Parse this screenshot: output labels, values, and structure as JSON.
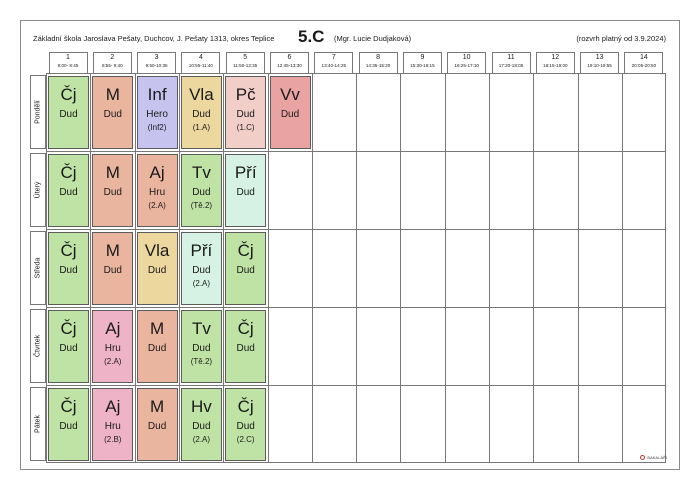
{
  "header": {
    "school": "Základní škola Jaroslava Pešaty, Duchcov, J. Pešaty 1313, okres Teplice",
    "class_name": "5.C",
    "teacher": "(Mgr. Lucie Dudjaková)",
    "valid_from": "(rozvrh platný od 3.9.2024)"
  },
  "periods": [
    {
      "num": "1",
      "time": "8:00- 8:45"
    },
    {
      "num": "2",
      "time": "8:55- 9:40"
    },
    {
      "num": "3",
      "time": "9:50-10:35"
    },
    {
      "num": "4",
      "time": "10:55-11:40"
    },
    {
      "num": "5",
      "time": "11:50-12:35"
    },
    {
      "num": "6",
      "time": "12:45-13:30"
    },
    {
      "num": "7",
      "time": "13:40-14:25"
    },
    {
      "num": "8",
      "time": "14:35-15:20"
    },
    {
      "num": "9",
      "time": "15:30-16:15"
    },
    {
      "num": "10",
      "time": "16:25-17:10"
    },
    {
      "num": "11",
      "time": "17:20-18:05"
    },
    {
      "num": "12",
      "time": "18:15-19:00"
    },
    {
      "num": "13",
      "time": "19:10-19:55"
    },
    {
      "num": "14",
      "time": "20:05-20:50"
    }
  ],
  "days": [
    {
      "name": "Pondělí",
      "lessons": [
        {
          "subject": "Čj",
          "teacher": "Dud",
          "room": "",
          "color": "#bfe3a5"
        },
        {
          "subject": "M",
          "teacher": "Dud",
          "room": "",
          "color": "#eab59f"
        },
        {
          "subject": "Inf",
          "teacher": "Hero",
          "room": "(Inf2)",
          "color": "#c6c4ee"
        },
        {
          "subject": "Vla",
          "teacher": "Dud",
          "room": "(1.A)",
          "color": "#ecd79f"
        },
        {
          "subject": "Pč",
          "teacher": "Dud",
          "room": "(1.C)",
          "color": "#f1cfc8"
        },
        {
          "subject": "Vv",
          "teacher": "Dud",
          "room": "",
          "color": "#e9a3a3"
        }
      ]
    },
    {
      "name": "Úterý",
      "lessons": [
        {
          "subject": "Čj",
          "teacher": "Dud",
          "room": "",
          "color": "#bfe3a5"
        },
        {
          "subject": "M",
          "teacher": "Dud",
          "room": "",
          "color": "#eab59f"
        },
        {
          "subject": "Aj",
          "teacher": "Hru",
          "room": "(2.A)",
          "color": "#eab59f"
        },
        {
          "subject": "Tv",
          "teacher": "Dud",
          "room": "(Tě.2)",
          "color": "#bfe3a5"
        },
        {
          "subject": "Pří",
          "teacher": "Dud",
          "room": "",
          "color": "#d6f2e4"
        }
      ]
    },
    {
      "name": "Středa",
      "lessons": [
        {
          "subject": "Čj",
          "teacher": "Dud",
          "room": "",
          "color": "#bfe3a5"
        },
        {
          "subject": "M",
          "teacher": "Dud",
          "room": "",
          "color": "#eab59f"
        },
        {
          "subject": "Vla",
          "teacher": "Dud",
          "room": "",
          "color": "#ecd79f"
        },
        {
          "subject": "Pří",
          "teacher": "Dud",
          "room": "(2.A)",
          "color": "#d6f2e4"
        },
        {
          "subject": "Čj",
          "teacher": "Dud",
          "room": "",
          "color": "#bfe3a5"
        }
      ]
    },
    {
      "name": "Čtvrtek",
      "lessons": [
        {
          "subject": "Čj",
          "teacher": "Dud",
          "room": "",
          "color": "#bfe3a5"
        },
        {
          "subject": "Aj",
          "teacher": "Hru",
          "room": "(2.A)",
          "color": "#eeb3c7"
        },
        {
          "subject": "M",
          "teacher": "Dud",
          "room": "",
          "color": "#eab59f"
        },
        {
          "subject": "Tv",
          "teacher": "Dud",
          "room": "(Tě.2)",
          "color": "#bfe3a5"
        },
        {
          "subject": "Čj",
          "teacher": "Dud",
          "room": "",
          "color": "#bfe3a5"
        }
      ]
    },
    {
      "name": "Pátek",
      "lessons": [
        {
          "subject": "Čj",
          "teacher": "Dud",
          "room": "",
          "color": "#bfe3a5"
        },
        {
          "subject": "Aj",
          "teacher": "Hru",
          "room": "(2.B)",
          "color": "#eeb3c7"
        },
        {
          "subject": "M",
          "teacher": "Dud",
          "room": "",
          "color": "#eab59f"
        },
        {
          "subject": "Hv",
          "teacher": "Dud",
          "room": "(2.A)",
          "color": "#bfe3a5"
        },
        {
          "subject": "Čj",
          "teacher": "Dud",
          "room": "(2.C)",
          "color": "#bfe3a5"
        }
      ]
    }
  ],
  "footer": {
    "brand": "BAKALÁŘI"
  }
}
